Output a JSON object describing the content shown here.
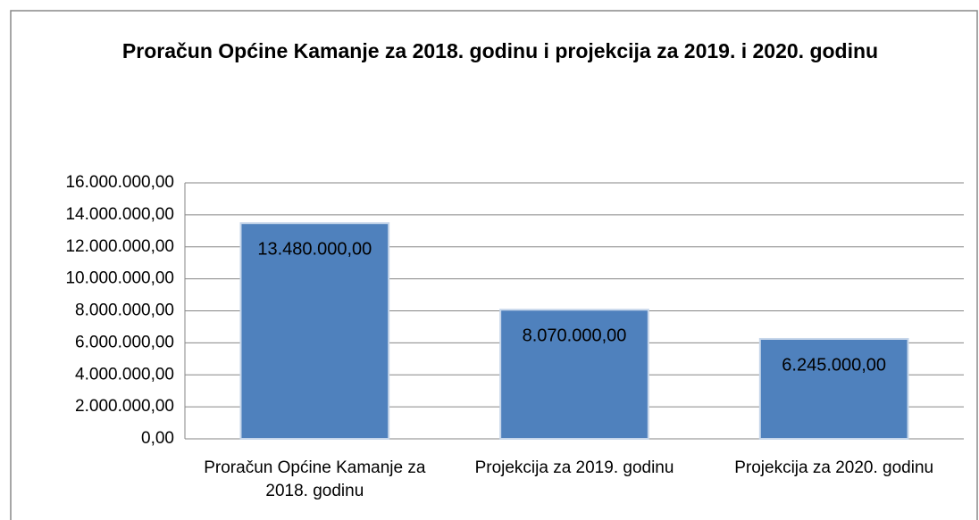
{
  "chart_data": {
    "type": "bar",
    "title": "Proračun Općine Kamanje za 2018. godinu i projekcija za 2019. i 2020. godinu",
    "categories": [
      "Proračun Općine Kamanje za 2018. godinu",
      "Projekcija za 2019. godinu",
      "Projekcija za 2020. godinu"
    ],
    "values": [
      13480000,
      8070000,
      6245000
    ],
    "value_labels": [
      "13.480.000,00",
      "8.070.000,00",
      "6.245.000,00"
    ],
    "color": "#4f81bd",
    "ylim": [
      0,
      16000000
    ],
    "yticks": [
      {
        "value": 0,
        "label": "0,00"
      },
      {
        "value": 2000000,
        "label": "2.000.000,00"
      },
      {
        "value": 4000000,
        "label": "4.000.000,00"
      },
      {
        "value": 6000000,
        "label": "6.000.000,00"
      },
      {
        "value": 8000000,
        "label": "8.000.000,00"
      },
      {
        "value": 10000000,
        "label": "10.000.000,00"
      },
      {
        "value": 12000000,
        "label": "12.000.000,00"
      },
      {
        "value": 14000000,
        "label": "14.000.000,00"
      },
      {
        "value": 16000000,
        "label": "16.000.000,00"
      }
    ],
    "grid": true
  }
}
